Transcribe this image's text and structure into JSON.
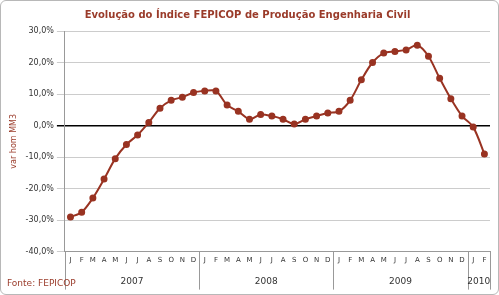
{
  "chart_data": {
    "type": "line",
    "title": "Evolução do Índice FEPICOP de Produção Engenharia Civil",
    "y_label": "var hom MM3",
    "source": "Fonte: FEPICOP",
    "categories": [
      "J",
      "F",
      "M",
      "A",
      "M",
      "J",
      "J",
      "A",
      "S",
      "O",
      "N",
      "D",
      "J",
      "F",
      "M",
      "A",
      "M",
      "J",
      "J",
      "A",
      "S",
      "O",
      "N",
      "D",
      "J",
      "F",
      "M",
      "A",
      "M",
      "J",
      "J",
      "A",
      "S",
      "O",
      "N",
      "D",
      "J",
      "F"
    ],
    "year_labels": [
      "2007",
      "2008",
      "2009",
      "2010"
    ],
    "values": [
      -29,
      -27.5,
      -23,
      -17,
      -10.5,
      -6,
      -3,
      1,
      5.5,
      8,
      9,
      10.5,
      11,
      11,
      6.5,
      4.5,
      2,
      3.5,
      3,
      2,
      0.5,
      2,
      3,
      4,
      4.5,
      8,
      14.5,
      20,
      23,
      23.5,
      24,
      25.5,
      22,
      15,
      8.5,
      3,
      -0.5,
      -9
    ],
    "color": "#993322",
    "marker": "circle",
    "grid": true,
    "ylim": [
      -40,
      30
    ],
    "yticks": [
      {
        "value": -40,
        "label": "-40,0%"
      },
      {
        "value": -30,
        "label": "-30,0%"
      },
      {
        "value": -20,
        "label": "-20,0%"
      },
      {
        "value": -10,
        "label": "-10,0%"
      },
      {
        "value": 0,
        "label": "0,0%"
      },
      {
        "value": 10,
        "label": "10,0%"
      },
      {
        "value": 20,
        "label": "20,0%"
      },
      {
        "value": 30,
        "label": "30,0%"
      }
    ]
  }
}
